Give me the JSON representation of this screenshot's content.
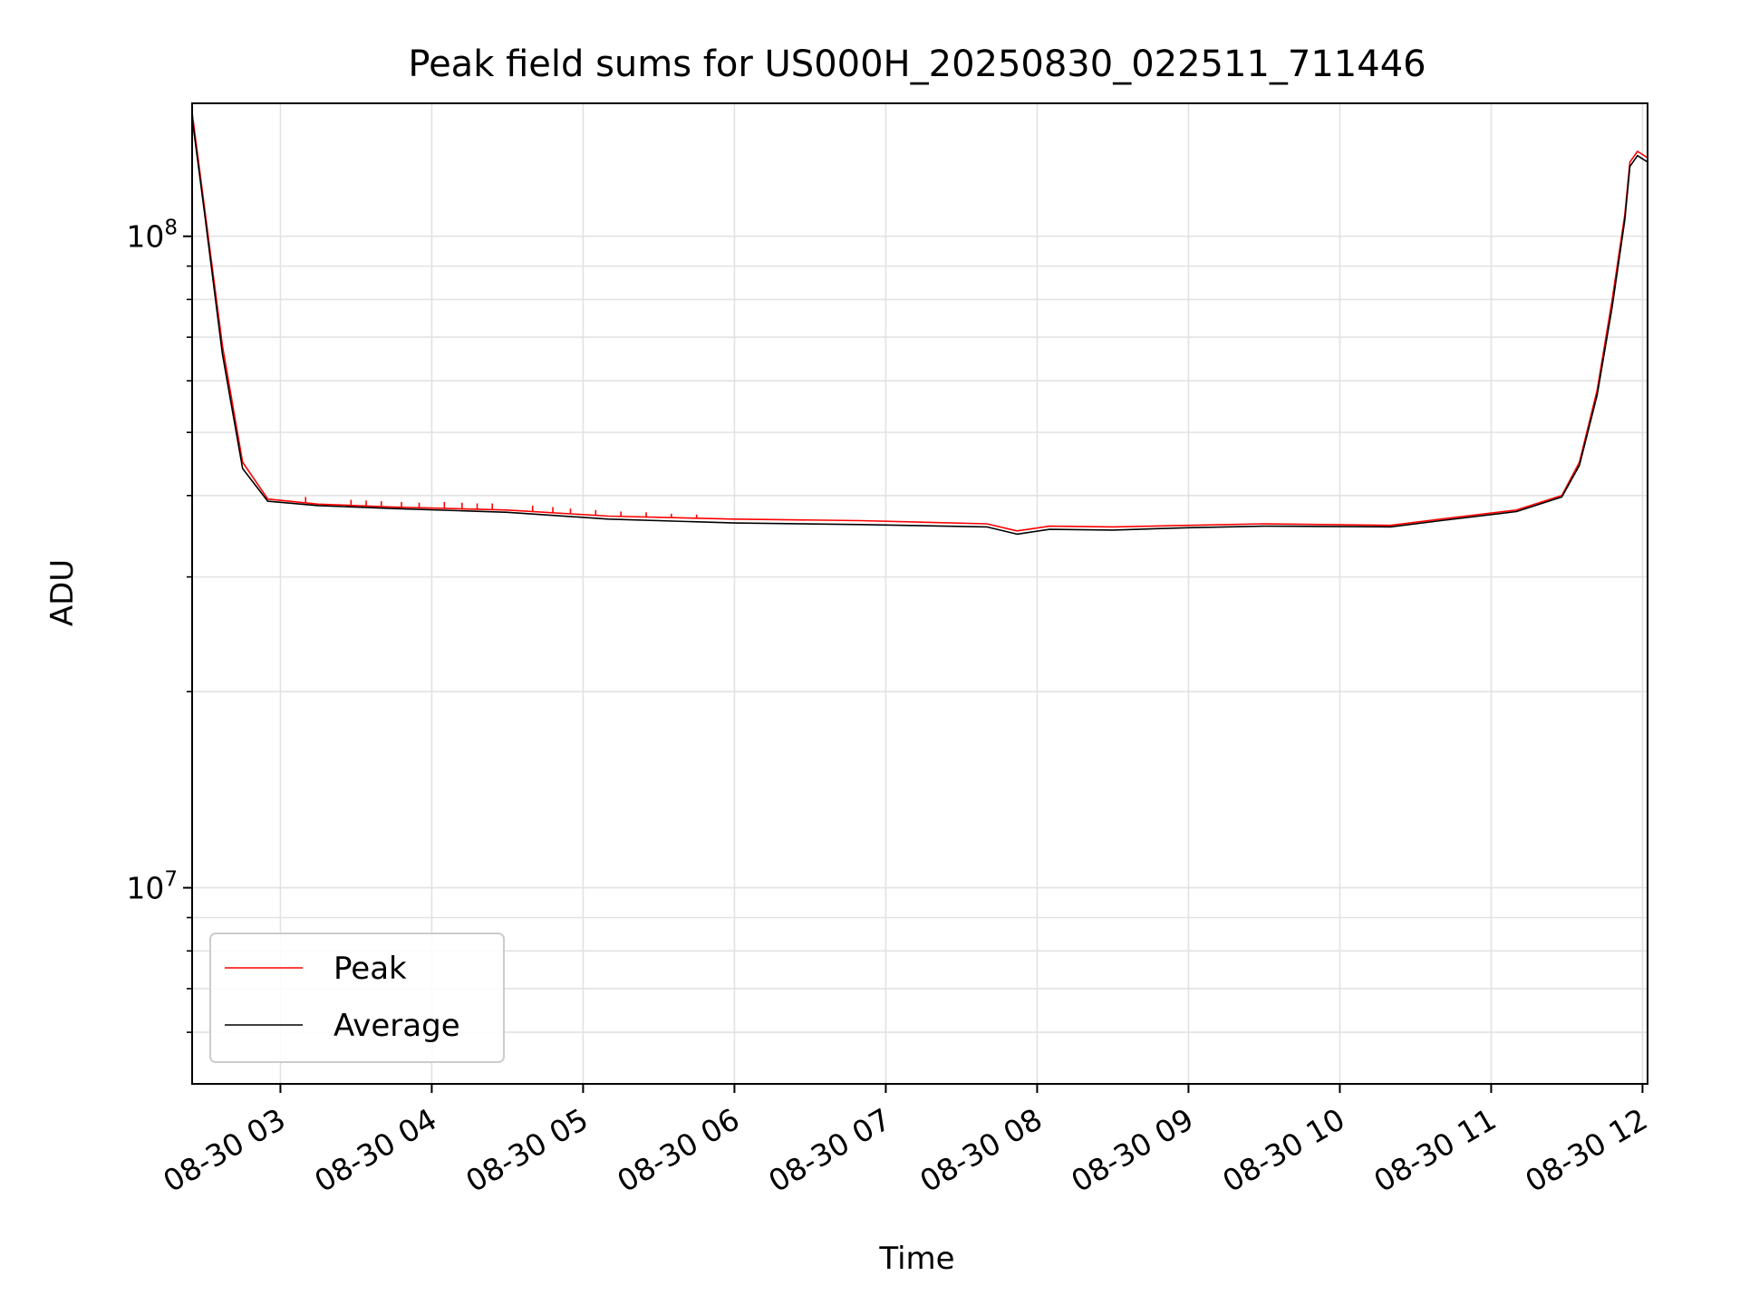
{
  "chart_data": {
    "type": "line",
    "title": "Peak field sums for US000H_20250830_022511_711446",
    "xlabel": "Time",
    "ylabel": "ADU",
    "x_scale": "time",
    "y_scale": "log",
    "xlim": [
      "2025-08-30 02:25",
      "2025-08-30 12:02"
    ],
    "ylim": [
      5000000,
      160000000
    ],
    "x_ticks": [
      {
        "time": "2025-08-30 03:00",
        "label": "08-30 03"
      },
      {
        "time": "2025-08-30 04:00",
        "label": "08-30 04"
      },
      {
        "time": "2025-08-30 05:00",
        "label": "08-30 05"
      },
      {
        "time": "2025-08-30 06:00",
        "label": "08-30 06"
      },
      {
        "time": "2025-08-30 07:00",
        "label": "08-30 07"
      },
      {
        "time": "2025-08-30 08:00",
        "label": "08-30 08"
      },
      {
        "time": "2025-08-30 09:00",
        "label": "08-30 09"
      },
      {
        "time": "2025-08-30 10:00",
        "label": "08-30 10"
      },
      {
        "time": "2025-08-30 11:00",
        "label": "08-30 11"
      },
      {
        "time": "2025-08-30 12:00",
        "label": "08-30 12"
      }
    ],
    "y_ticks_major": [
      {
        "value": 10000000,
        "base": "10",
        "exp": "7"
      },
      {
        "value": 100000000,
        "base": "10",
        "exp": "8"
      }
    ],
    "y_ticks_minor": [
      6000000,
      7000000,
      8000000,
      9000000,
      20000000,
      30000000,
      40000000,
      50000000,
      60000000,
      70000000,
      80000000,
      90000000
    ],
    "grid": true,
    "legend": {
      "position": "lower-left"
    },
    "series": [
      {
        "name": "Peak",
        "color": "#ff0000",
        "points": [
          [
            "2025-08-30 02:25",
            155000000
          ],
          [
            "2025-08-30 02:30",
            110000000
          ],
          [
            "2025-08-30 02:37",
            68000000
          ],
          [
            "2025-08-30 02:45",
            45000000
          ],
          [
            "2025-08-30 02:55",
            39500000
          ],
          [
            "2025-08-30 03:15",
            38800000
          ],
          [
            "2025-08-30 03:45",
            38400000
          ],
          [
            "2025-08-30 04:30",
            38000000
          ],
          [
            "2025-08-30 05:10",
            37200000
          ],
          [
            "2025-08-30 06:00",
            36800000
          ],
          [
            "2025-08-30 06:50",
            36600000
          ],
          [
            "2025-08-30 07:40",
            36200000
          ],
          [
            "2025-08-30 07:52",
            35300000
          ],
          [
            "2025-08-30 08:05",
            35900000
          ],
          [
            "2025-08-30 08:30",
            35800000
          ],
          [
            "2025-08-30 09:00",
            36000000
          ],
          [
            "2025-08-30 09:30",
            36200000
          ],
          [
            "2025-08-30 10:20",
            36000000
          ],
          [
            "2025-08-30 10:40",
            36800000
          ],
          [
            "2025-08-30 11:10",
            38000000
          ],
          [
            "2025-08-30 11:28",
            40000000
          ],
          [
            "2025-08-30 11:35",
            45000000
          ],
          [
            "2025-08-30 11:42",
            58000000
          ],
          [
            "2025-08-30 11:48",
            80000000
          ],
          [
            "2025-08-30 11:53",
            108000000
          ],
          [
            "2025-08-30 11:55",
            130000000
          ],
          [
            "2025-08-30 11:58",
            135000000
          ],
          [
            "2025-08-30 12:02",
            132000000
          ]
        ],
        "spikes": [
          [
            "2025-08-30 03:10",
            39800000
          ],
          [
            "2025-08-30 03:28",
            39400000
          ],
          [
            "2025-08-30 03:34",
            39300000
          ],
          [
            "2025-08-30 03:40",
            39200000
          ],
          [
            "2025-08-30 03:48",
            39100000
          ],
          [
            "2025-08-30 03:55",
            39000000
          ],
          [
            "2025-08-30 04:05",
            39100000
          ],
          [
            "2025-08-30 04:12",
            39000000
          ],
          [
            "2025-08-30 04:18",
            38900000
          ],
          [
            "2025-08-30 04:24",
            38900000
          ],
          [
            "2025-08-30 04:40",
            38600000
          ],
          [
            "2025-08-30 04:48",
            38400000
          ],
          [
            "2025-08-30 04:55",
            38200000
          ],
          [
            "2025-08-30 05:05",
            38000000
          ],
          [
            "2025-08-30 05:15",
            37800000
          ],
          [
            "2025-08-30 05:25",
            37700000
          ],
          [
            "2025-08-30 05:35",
            37500000
          ],
          [
            "2025-08-30 05:45",
            37400000
          ]
        ]
      },
      {
        "name": "Average",
        "color": "#000000",
        "points": [
          [
            "2025-08-30 02:25",
            152000000
          ],
          [
            "2025-08-30 02:30",
            108000000
          ],
          [
            "2025-08-30 02:37",
            66000000
          ],
          [
            "2025-08-30 02:45",
            44000000
          ],
          [
            "2025-08-30 02:55",
            39200000
          ],
          [
            "2025-08-30 03:15",
            38600000
          ],
          [
            "2025-08-30 03:45",
            38200000
          ],
          [
            "2025-08-30 04:30",
            37700000
          ],
          [
            "2025-08-30 05:10",
            36800000
          ],
          [
            "2025-08-30 06:00",
            36300000
          ],
          [
            "2025-08-30 06:50",
            36100000
          ],
          [
            "2025-08-30 07:40",
            35800000
          ],
          [
            "2025-08-30 07:52",
            34900000
          ],
          [
            "2025-08-30 08:05",
            35500000
          ],
          [
            "2025-08-30 08:30",
            35400000
          ],
          [
            "2025-08-30 09:00",
            35700000
          ],
          [
            "2025-08-30 09:30",
            35900000
          ],
          [
            "2025-08-30 10:20",
            35800000
          ],
          [
            "2025-08-30 10:40",
            36600000
          ],
          [
            "2025-08-30 11:10",
            37800000
          ],
          [
            "2025-08-30 11:28",
            39800000
          ],
          [
            "2025-08-30 11:35",
            44500000
          ],
          [
            "2025-08-30 11:42",
            57000000
          ],
          [
            "2025-08-30 11:48",
            78000000
          ],
          [
            "2025-08-30 11:53",
            106000000
          ],
          [
            "2025-08-30 11:55",
            128000000
          ],
          [
            "2025-08-30 11:58",
            133000000
          ],
          [
            "2025-08-30 12:02",
            130000000
          ]
        ]
      }
    ]
  }
}
